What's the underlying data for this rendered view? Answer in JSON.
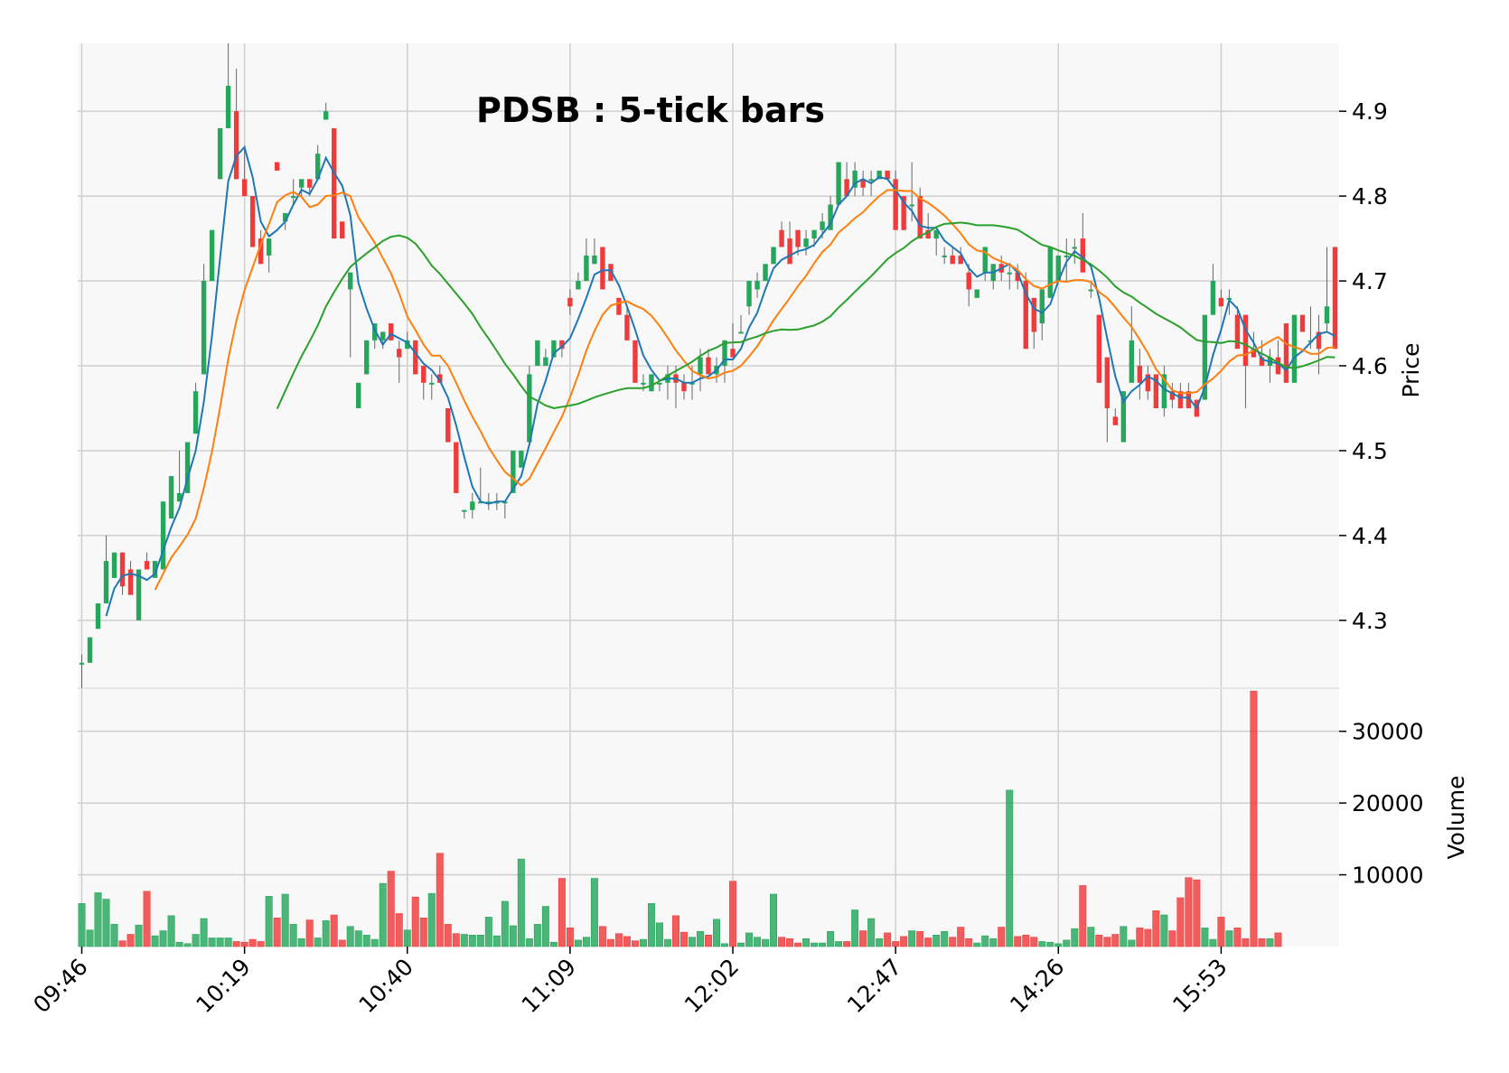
{
  "chart_data": {
    "type": "candlestick",
    "title": "PDSB : 5-tick bars",
    "price_axis": {
      "label": "Price",
      "ticks": [
        4.3,
        4.4,
        4.5,
        4.6,
        4.7,
        4.8,
        4.9
      ],
      "range": [
        4.22,
        4.98
      ]
    },
    "volume_axis": {
      "label": "Volume",
      "ticks": [
        10000,
        20000,
        30000
      ],
      "tick_labels": [
        "10000",
        "20000",
        "30000"
      ],
      "range": [
        0,
        36000
      ]
    },
    "x_tick_labels": [
      {
        "index": 0,
        "label": "09:46"
      },
      {
        "index": 20,
        "label": "10:19"
      },
      {
        "index": 40,
        "label": "10:40"
      },
      {
        "index": 60,
        "label": "11:09"
      },
      {
        "index": 80,
        "label": "12:02"
      },
      {
        "index": 100,
        "label": "12:47"
      },
      {
        "index": 120,
        "label": "14:26"
      },
      {
        "index": 140,
        "label": "15:53"
      }
    ],
    "grid": true,
    "colors": {
      "up": "#26a65b",
      "down": "#ef3b3b",
      "ma_fast": "#1f77b4",
      "ma_mid": "#ff7f0e",
      "ma_slow": "#2ca02c",
      "background": "#f8f8f8",
      "grid": "#cfcfcf"
    },
    "moving_averages": [
      {
        "period": 4,
        "color": "#1f77b4"
      },
      {
        "period": 10,
        "color": "#ff7f0e"
      },
      {
        "period": 25,
        "color": "#2ca02c"
      }
    ],
    "ohlc": [
      [
        4.25,
        4.26,
        4.22,
        4.25
      ],
      [
        4.25,
        4.28,
        4.25,
        4.28
      ],
      [
        4.29,
        4.32,
        4.29,
        4.32
      ],
      [
        4.32,
        4.4,
        4.32,
        4.37
      ],
      [
        4.35,
        4.38,
        4.35,
        4.38
      ],
      [
        4.38,
        4.38,
        4.33,
        4.34
      ],
      [
        4.36,
        4.37,
        4.33,
        4.33
      ],
      [
        4.3,
        4.36,
        4.3,
        4.36
      ],
      [
        4.37,
        4.38,
        4.36,
        4.36
      ],
      [
        4.35,
        4.37,
        4.35,
        4.37
      ],
      [
        4.36,
        4.44,
        4.36,
        4.44
      ],
      [
        4.42,
        4.47,
        4.42,
        4.47
      ],
      [
        4.44,
        4.5,
        4.44,
        4.45
      ],
      [
        4.45,
        4.51,
        4.45,
        4.51
      ],
      [
        4.52,
        4.58,
        4.52,
        4.57
      ],
      [
        4.59,
        4.72,
        4.59,
        4.7
      ],
      [
        4.7,
        4.76,
        4.7,
        4.76
      ],
      [
        4.82,
        4.88,
        4.82,
        4.88
      ],
      [
        4.88,
        4.98,
        4.88,
        4.93
      ],
      [
        4.9,
        4.95,
        4.82,
        4.82
      ],
      [
        4.82,
        4.86,
        4.8,
        4.8
      ],
      [
        4.8,
        4.8,
        4.74,
        4.74
      ],
      [
        4.75,
        4.76,
        4.72,
        4.72
      ],
      [
        4.73,
        4.75,
        4.71,
        4.75
      ],
      [
        4.84,
        4.84,
        4.83,
        4.83
      ],
      [
        4.77,
        4.78,
        4.76,
        4.78
      ],
      [
        4.8,
        4.82,
        4.79,
        4.8
      ],
      [
        4.81,
        4.82,
        4.8,
        4.82
      ],
      [
        4.82,
        4.82,
        4.8,
        4.81
      ],
      [
        4.82,
        4.86,
        4.82,
        4.85
      ],
      [
        4.89,
        4.91,
        4.89,
        4.9
      ],
      [
        4.88,
        4.88,
        4.75,
        4.75
      ],
      [
        4.77,
        4.77,
        4.75,
        4.75
      ],
      [
        4.69,
        4.71,
        4.61,
        4.71
      ],
      [
        4.55,
        4.58,
        4.55,
        4.58
      ],
      [
        4.59,
        4.63,
        4.59,
        4.63
      ],
      [
        4.63,
        4.65,
        4.62,
        4.65
      ],
      [
        4.63,
        4.64,
        4.62,
        4.64
      ],
      [
        4.65,
        4.65,
        4.63,
        4.63
      ],
      [
        4.62,
        4.63,
        4.58,
        4.61
      ],
      [
        4.62,
        4.64,
        4.62,
        4.63
      ],
      [
        4.63,
        4.63,
        4.59,
        4.59
      ],
      [
        4.6,
        4.6,
        4.56,
        4.58
      ],
      [
        4.58,
        4.59,
        4.56,
        4.58
      ],
      [
        4.59,
        4.6,
        4.58,
        4.58
      ],
      [
        4.55,
        4.55,
        4.51,
        4.51
      ],
      [
        4.51,
        4.51,
        4.45,
        4.45
      ],
      [
        4.43,
        4.43,
        4.42,
        4.43
      ],
      [
        4.43,
        4.45,
        4.42,
        4.44
      ],
      [
        4.44,
        4.48,
        4.44,
        4.44
      ],
      [
        4.44,
        4.45,
        4.43,
        4.44
      ],
      [
        4.44,
        4.45,
        4.43,
        4.44
      ],
      [
        4.44,
        4.44,
        4.42,
        4.44
      ],
      [
        4.45,
        4.5,
        4.45,
        4.5
      ],
      [
        4.48,
        4.5,
        4.48,
        4.5
      ],
      [
        4.51,
        4.6,
        4.51,
        4.59
      ],
      [
        4.6,
        4.63,
        4.6,
        4.63
      ],
      [
        4.6,
        4.62,
        4.6,
        4.61
      ],
      [
        4.61,
        4.63,
        4.61,
        4.63
      ],
      [
        4.63,
        4.63,
        4.61,
        4.62
      ],
      [
        4.68,
        4.69,
        4.66,
        4.67
      ],
      [
        4.69,
        4.71,
        4.69,
        4.7
      ],
      [
        4.7,
        4.75,
        4.7,
        4.73
      ],
      [
        4.72,
        4.75,
        4.72,
        4.73
      ],
      [
        4.74,
        4.74,
        4.69,
        4.69
      ],
      [
        4.72,
        4.72,
        4.7,
        4.7
      ],
      [
        4.68,
        4.68,
        4.66,
        4.66
      ],
      [
        4.66,
        4.67,
        4.63,
        4.63
      ],
      [
        4.63,
        4.63,
        4.58,
        4.58
      ],
      [
        4.58,
        4.59,
        4.57,
        4.58
      ],
      [
        4.57,
        4.59,
        4.57,
        4.59
      ],
      [
        4.58,
        4.58,
        4.57,
        4.58
      ],
      [
        4.58,
        4.6,
        4.56,
        4.59
      ],
      [
        4.59,
        4.6,
        4.55,
        4.58
      ],
      [
        4.58,
        4.59,
        4.56,
        4.57
      ],
      [
        4.58,
        4.6,
        4.56,
        4.58
      ],
      [
        4.59,
        4.62,
        4.57,
        4.61
      ],
      [
        4.61,
        4.62,
        4.59,
        4.59
      ],
      [
        4.59,
        4.61,
        4.58,
        4.6
      ],
      [
        4.6,
        4.63,
        4.58,
        4.63
      ],
      [
        4.62,
        4.65,
        4.61,
        4.61
      ],
      [
        4.64,
        4.66,
        4.64,
        4.64
      ],
      [
        4.67,
        4.7,
        4.66,
        4.7
      ],
      [
        4.69,
        4.71,
        4.68,
        4.7
      ],
      [
        4.7,
        4.72,
        4.7,
        4.72
      ],
      [
        4.72,
        4.74,
        4.72,
        4.74
      ],
      [
        4.76,
        4.77,
        4.74,
        4.74
      ],
      [
        4.75,
        4.77,
        4.72,
        4.72
      ],
      [
        4.76,
        4.76,
        4.73,
        4.74
      ],
      [
        4.74,
        4.76,
        4.73,
        4.75
      ],
      [
        4.75,
        4.76,
        4.74,
        4.76
      ],
      [
        4.76,
        4.78,
        4.75,
        4.77
      ],
      [
        4.76,
        4.8,
        4.76,
        4.79
      ],
      [
        4.79,
        4.84,
        4.79,
        4.84
      ],
      [
        4.82,
        4.84,
        4.8,
        4.8
      ],
      [
        4.81,
        4.84,
        4.8,
        4.83
      ],
      [
        4.82,
        4.83,
        4.8,
        4.81
      ],
      [
        4.82,
        4.83,
        4.8,
        4.82
      ],
      [
        4.82,
        4.83,
        4.82,
        4.83
      ],
      [
        4.83,
        4.83,
        4.82,
        4.82
      ],
      [
        4.82,
        4.83,
        4.76,
        4.76
      ],
      [
        4.8,
        4.8,
        4.76,
        4.76
      ],
      [
        4.79,
        4.84,
        4.77,
        4.79
      ],
      [
        4.8,
        4.81,
        4.75,
        4.75
      ],
      [
        4.76,
        4.78,
        4.75,
        4.75
      ],
      [
        4.75,
        4.76,
        4.73,
        4.76
      ],
      [
        4.73,
        4.74,
        4.72,
        4.73
      ],
      [
        4.73,
        4.74,
        4.72,
        4.72
      ],
      [
        4.73,
        4.74,
        4.72,
        4.72
      ],
      [
        4.71,
        4.72,
        4.67,
        4.69
      ],
      [
        4.68,
        4.69,
        4.68,
        4.69
      ],
      [
        4.71,
        4.74,
        4.7,
        4.74
      ],
      [
        4.7,
        4.72,
        4.69,
        4.72
      ],
      [
        4.72,
        4.73,
        4.7,
        4.71
      ],
      [
        4.71,
        4.72,
        4.69,
        4.71
      ],
      [
        4.71,
        4.72,
        4.69,
        4.7
      ],
      [
        4.7,
        4.71,
        4.62,
        4.62
      ],
      [
        4.68,
        4.68,
        4.62,
        4.64
      ],
      [
        4.65,
        4.69,
        4.63,
        4.69
      ],
      [
        4.68,
        4.74,
        4.68,
        4.74
      ],
      [
        4.7,
        4.73,
        4.7,
        4.73
      ],
      [
        4.73,
        4.75,
        4.7,
        4.73
      ],
      [
        4.74,
        4.75,
        4.72,
        4.74
      ],
      [
        4.75,
        4.78,
        4.71,
        4.71
      ],
      [
        4.69,
        4.7,
        4.68,
        4.69
      ],
      [
        4.66,
        4.66,
        4.58,
        4.58
      ],
      [
        4.61,
        4.61,
        4.51,
        4.55
      ],
      [
        4.54,
        4.55,
        4.53,
        4.53
      ],
      [
        4.51,
        4.57,
        4.51,
        4.57
      ],
      [
        4.58,
        4.67,
        4.58,
        4.63
      ],
      [
        4.6,
        4.62,
        4.56,
        4.58
      ],
      [
        4.59,
        4.6,
        4.56,
        4.57
      ],
      [
        4.59,
        4.59,
        4.55,
        4.55
      ],
      [
        4.55,
        4.6,
        4.54,
        4.59
      ],
      [
        4.57,
        4.58,
        4.55,
        4.56
      ],
      [
        4.57,
        4.58,
        4.55,
        4.55
      ],
      [
        4.57,
        4.58,
        4.55,
        4.55
      ],
      [
        4.56,
        4.56,
        4.54,
        4.54
      ],
      [
        4.56,
        4.66,
        4.56,
        4.66
      ],
      [
        4.66,
        4.72,
        4.66,
        4.7
      ],
      [
        4.68,
        4.69,
        4.67,
        4.67
      ],
      [
        4.68,
        4.69,
        4.66,
        4.68
      ],
      [
        4.66,
        4.67,
        4.62,
        4.62
      ],
      [
        4.66,
        4.66,
        4.55,
        4.6
      ],
      [
        4.62,
        4.64,
        4.61,
        4.61
      ],
      [
        4.61,
        4.63,
        4.6,
        4.6
      ],
      [
        4.6,
        4.62,
        4.58,
        4.61
      ],
      [
        4.61,
        4.63,
        4.59,
        4.59
      ],
      [
        4.65,
        4.65,
        4.58,
        4.58
      ],
      [
        4.58,
        4.66,
        4.58,
        4.66
      ],
      [
        4.66,
        4.66,
        4.64,
        4.64
      ],
      [
        4.63,
        4.67,
        4.62,
        4.63
      ],
      [
        4.64,
        4.66,
        4.59,
        4.62
      ],
      [
        4.65,
        4.74,
        4.64,
        4.67
      ],
      [
        4.74,
        4.74,
        4.62,
        4.62
      ]
    ],
    "volume": [
      6000,
      2300,
      7500,
      6600,
      3100,
      800,
      1700,
      3000,
      7700,
      1500,
      2200,
      4300,
      600,
      400,
      1700,
      3900,
      1200,
      1200,
      1200,
      700,
      600,
      1000,
      700,
      7000,
      4000,
      7300,
      3100,
      1100,
      3700,
      1200,
      3600,
      4400,
      900,
      2800,
      2200,
      1600,
      1000,
      8800,
      10500,
      4600,
      2300,
      6900,
      4000,
      7400,
      13000,
      3100,
      1800,
      1700,
      1600,
      1600,
      4100,
      1500,
      6300,
      2900,
      12200,
      1100,
      3100,
      5600,
      600,
      9500,
      2600,
      900,
      1300,
      9500,
      2800,
      1000,
      1800,
      1400,
      800,
      1000,
      6000,
      3300,
      1000,
      4300,
      2000,
      1300,
      2100,
      1600,
      3800,
      400,
      9100,
      500,
      1900,
      1300,
      1000,
      7300,
      1300,
      1100,
      500,
      1100,
      500,
      500,
      2100,
      700,
      700,
      5100,
      2200,
      3900,
      1100,
      1900,
      700,
      1400,
      2200,
      2100,
      1200,
      1600,
      2100,
      1300,
      2700,
      1100,
      500,
      1500,
      1100,
      2700,
      21800,
      1400,
      1600,
      1300,
      700,
      600,
      400,
      900,
      2500,
      8500,
      2700,
      1600,
      1300,
      1700,
      2800,
      900,
      2600,
      2400,
      5000,
      4400,
      2200,
      6800,
      9600,
      9300,
      2600,
      1000,
      4100,
      2200,
      2600,
      1100,
      35600,
      1100,
      1100,
      1900
    ]
  }
}
